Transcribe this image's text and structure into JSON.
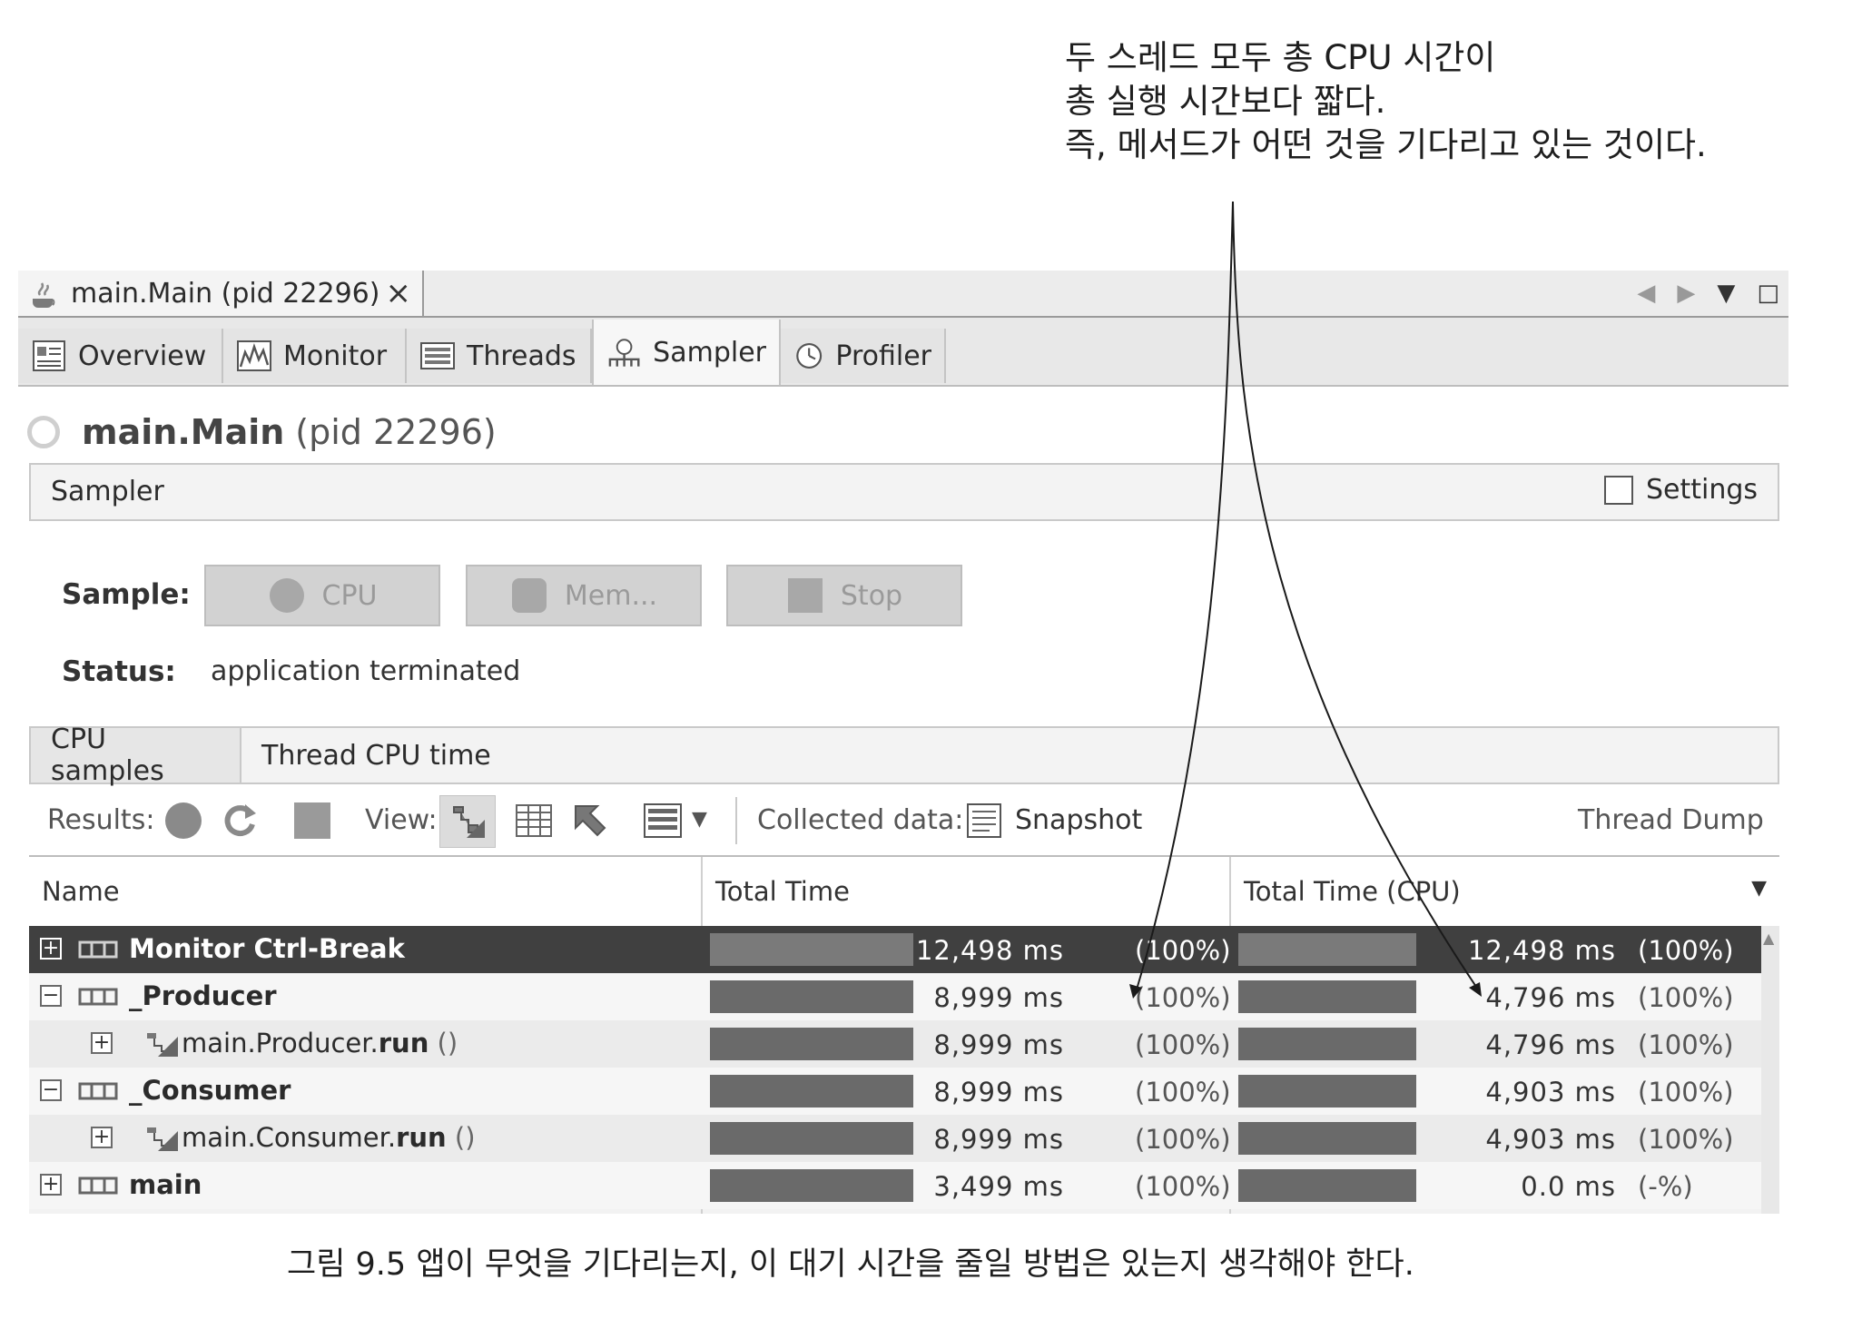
{
  "annotation": {
    "lines": [
      "두 스레드 모두 총 CPU 시간이",
      "총 실행 시간보다 짧다.",
      "즉, 메서드가 어떤 것을 기다리고 있는 것이다."
    ]
  },
  "window": {
    "tab_title": "main.Main (pid 22296)",
    "close_label": "×"
  },
  "view_tabs": [
    "Overview",
    "Monitor",
    "Threads",
    "Sampler",
    "Profiler"
  ],
  "active_view_tab": "Sampler",
  "page_title": {
    "main": "main.Main",
    "pid": "(pid 22296)"
  },
  "sampler_bar": {
    "label": "Sampler",
    "settings_label": "Settings"
  },
  "sample": {
    "label": "Sample:",
    "buttons": [
      "CPU",
      "Mem...",
      "Stop"
    ],
    "status_label": "Status:",
    "status_value": "application terminated"
  },
  "inner_tabs": [
    "CPU samples",
    "Thread CPU time"
  ],
  "toolbar": {
    "results_label": "Results:",
    "view_label": "View:",
    "collected_label": "Collected data:",
    "snapshot_label": "Snapshot",
    "thread_dump_label": "Thread Dump"
  },
  "table": {
    "headers": [
      "Name",
      "Total Time",
      "Total Time (CPU)"
    ],
    "rows": [
      {
        "expander": "+",
        "name": "Monitor Ctrl-Break",
        "bold": true,
        "total": "12,498 ms",
        "total_pct": "(100%)",
        "cpu": "12,498 ms",
        "cpu_pct": "(100%)",
        "total_bar": 1.0,
        "cpu_bar": 1.0
      },
      {
        "expander": "−",
        "name": "_Producer",
        "bold": true,
        "total": "8,999 ms",
        "total_pct": "(100%)",
        "cpu": "4,796 ms",
        "cpu_pct": "(100%)",
        "total_bar": 1.0,
        "cpu_bar": 1.0
      },
      {
        "expander": "+",
        "name": "main.Producer.",
        "method": "run",
        "suffix": " ()",
        "total": "8,999 ms",
        "total_pct": "(100%)",
        "cpu": "4,796 ms",
        "cpu_pct": "(100%)",
        "total_bar": 1.0,
        "cpu_bar": 1.0
      },
      {
        "expander": "−",
        "name": "_Consumer",
        "bold": true,
        "total": "8,999 ms",
        "total_pct": "(100%)",
        "cpu": "4,903 ms",
        "cpu_pct": "(100%)",
        "total_bar": 1.0,
        "cpu_bar": 1.0
      },
      {
        "expander": "+",
        "name": "main.Consumer.",
        "method": "run",
        "suffix": " ()",
        "total": "8,999 ms",
        "total_pct": "(100%)",
        "cpu": "4,903 ms",
        "cpu_pct": "(100%)",
        "total_bar": 1.0,
        "cpu_bar": 1.0
      },
      {
        "expander": "+",
        "name": "main",
        "bold": true,
        "total": "3,499 ms",
        "total_pct": "(100%)",
        "cpu": "0.0 ms",
        "cpu_pct": "(-%)",
        "total_bar": 1.0,
        "cpu_bar": 1.0
      }
    ]
  },
  "caption": "그림 9.5 앱이 무엇을 기다리는지, 이 대기 시간을 줄일 방법은 있는지 생각해야 한다."
}
